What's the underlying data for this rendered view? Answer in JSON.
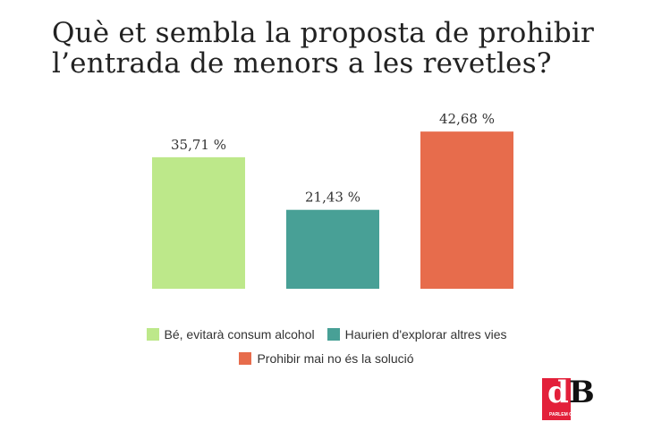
{
  "chart_data": {
    "type": "bar",
    "title": "Què et sembla la proposta de prohibir l’entrada de menors a les revetles?",
    "categories": [
      "Bé, evitarà consum alcohol",
      "Haurien d'explorar altres vies",
      "Prohibir mai no és la solució"
    ],
    "values": [
      35.71,
      21.43,
      42.68
    ],
    "data_labels": [
      "35,71 %",
      "21,43 %",
      "42,68 %"
    ],
    "colors": [
      "#bde88a",
      "#48a096",
      "#e76c4c"
    ],
    "ylim": [
      0,
      50
    ],
    "grid": false,
    "legend_position": "bottom"
  },
  "logo": {
    "text": "dB",
    "tagline": "PARLEM COM TU"
  }
}
